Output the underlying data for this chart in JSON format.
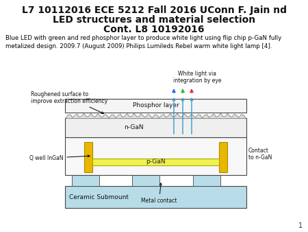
{
  "title_line1": "L7 10112016 ECE 5212 Fall 2016 UConn F. Jain nd",
  "title_line2": "LED structures and material selection",
  "title_line3": "Cont. L8 10192016",
  "subtitle": "Blue LED with green and red phosphor layer to produce white light using flip chip p-GaN fully\nmetalized design. 2009.7 (August 2009) Philips Lumileds Rebel warm white light lamp [4].",
  "label_phosphor": "Phosphor layer",
  "label_ngan": "n-GaN",
  "label_pgan": "p-GaN",
  "label_qwell": "Q well InGaN",
  "label_contact": "Contact\nto n-GaN",
  "label_ceramic": "Ceramic Submount",
  "label_metal": "Metal contact",
  "label_roughened": "Roughened surface to\nimprove extraction efficiency",
  "label_whitelight": "White light via\nintegration by eye",
  "page_number": "1",
  "bg_color": "#ffffff",
  "ceramic_color": "#b8dce8",
  "pad_color": "#b8dce8",
  "ngan_color": "#efefef",
  "phosphor_color": "#f5f5f5",
  "pgan_color": "#f0f050",
  "gold_color": "#e8b800",
  "outline_color": "#444444",
  "arrow_color": "#3399cc",
  "title_fontsize": 10,
  "subtitle_fontsize": 6.2
}
